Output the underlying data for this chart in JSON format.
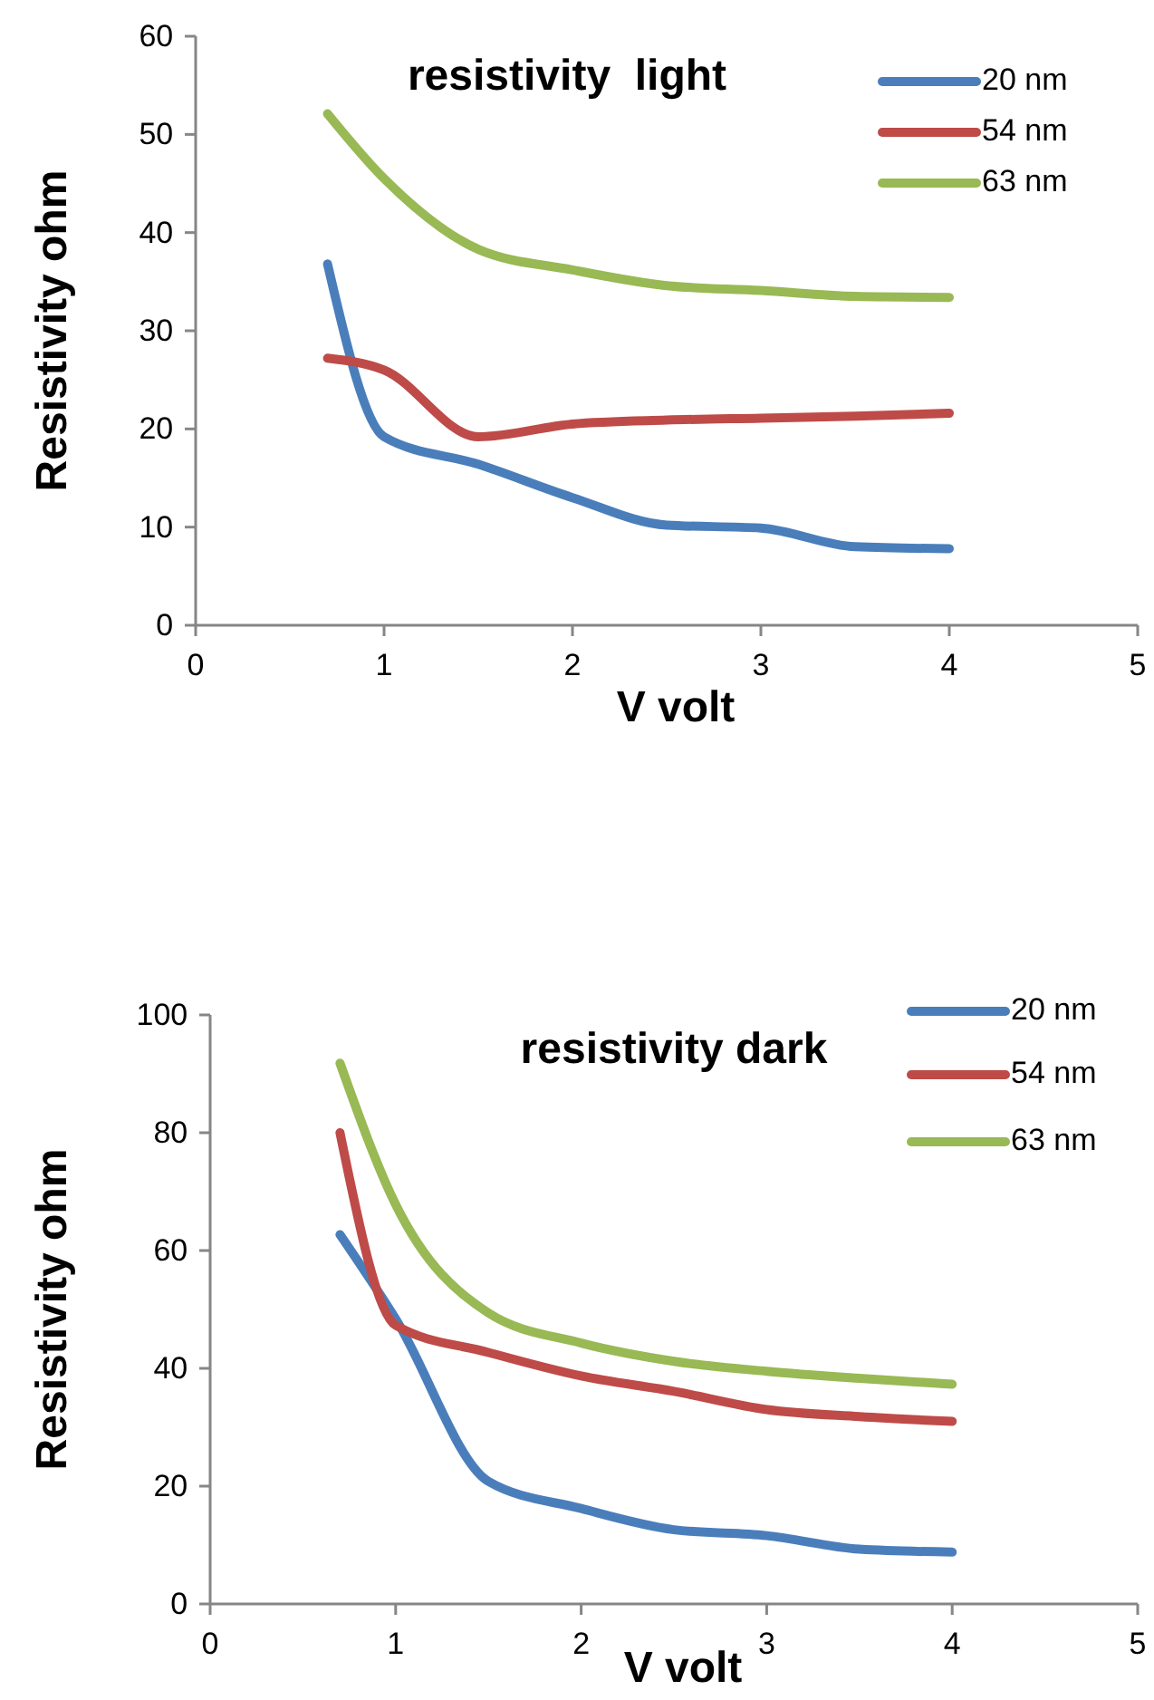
{
  "chart_data": [
    {
      "type": "line",
      "title": "resistivity  light",
      "xlabel": "V volt",
      "ylabel": "Resistivity ohm",
      "x": [
        0.7,
        1,
        1.5,
        2,
        2.5,
        3,
        3.5,
        4
      ],
      "xlim": [
        0,
        5
      ],
      "xticks": [
        0,
        1,
        2,
        3,
        4,
        5
      ],
      "ylim": [
        0,
        60
      ],
      "yticks": [
        0,
        10,
        20,
        30,
        40,
        50,
        60
      ],
      "grid": false,
      "legend": "top right",
      "marker": "none",
      "line_style": "solid",
      "series": [
        {
          "name": "20 nm",
          "color": "#4a7ebb",
          "values": [
            36.8,
            19.2,
            16.4,
            13.0,
            10.2,
            9.9,
            8.0,
            7.8
          ]
        },
        {
          "name": "54 nm",
          "color": "#be4b48",
          "values": [
            27.2,
            26.0,
            19.2,
            20.5,
            20.9,
            21.1,
            21.3,
            21.6
          ]
        },
        {
          "name": "63 nm",
          "color": "#98b954",
          "values": [
            52.1,
            45.5,
            38.3,
            36.2,
            34.6,
            34.1,
            33.5,
            33.4
          ]
        }
      ]
    },
    {
      "type": "line",
      "title": "resistivity dark",
      "xlabel": "V volt",
      "ylabel": "Resistivity ohm",
      "x": [
        0.7,
        1,
        1.5,
        2,
        2.5,
        3,
        3.5,
        4
      ],
      "xlim": [
        0,
        5
      ],
      "xticks": [
        0,
        1,
        2,
        3,
        4,
        5
      ],
      "ylim": [
        0,
        100
      ],
      "yticks": [
        0,
        20,
        40,
        60,
        80,
        100
      ],
      "grid": false,
      "legend": "top right",
      "marker": "none",
      "line_style": "solid",
      "series": [
        {
          "name": "20 nm",
          "color": "#4a7ebb",
          "values": [
            62.7,
            48.4,
            20.8,
            16.2,
            12.6,
            11.6,
            9.3,
            8.8
          ]
        },
        {
          "name": "54 nm",
          "color": "#be4b48",
          "values": [
            80.0,
            47.3,
            42.7,
            38.7,
            36.1,
            33.0,
            31.8,
            31.0
          ]
        },
        {
          "name": "63 nm",
          "color": "#98b954",
          "values": [
            91.8,
            67.8,
            49.4,
            44.3,
            41.2,
            39.5,
            38.3,
            37.3
          ]
        }
      ]
    }
  ]
}
